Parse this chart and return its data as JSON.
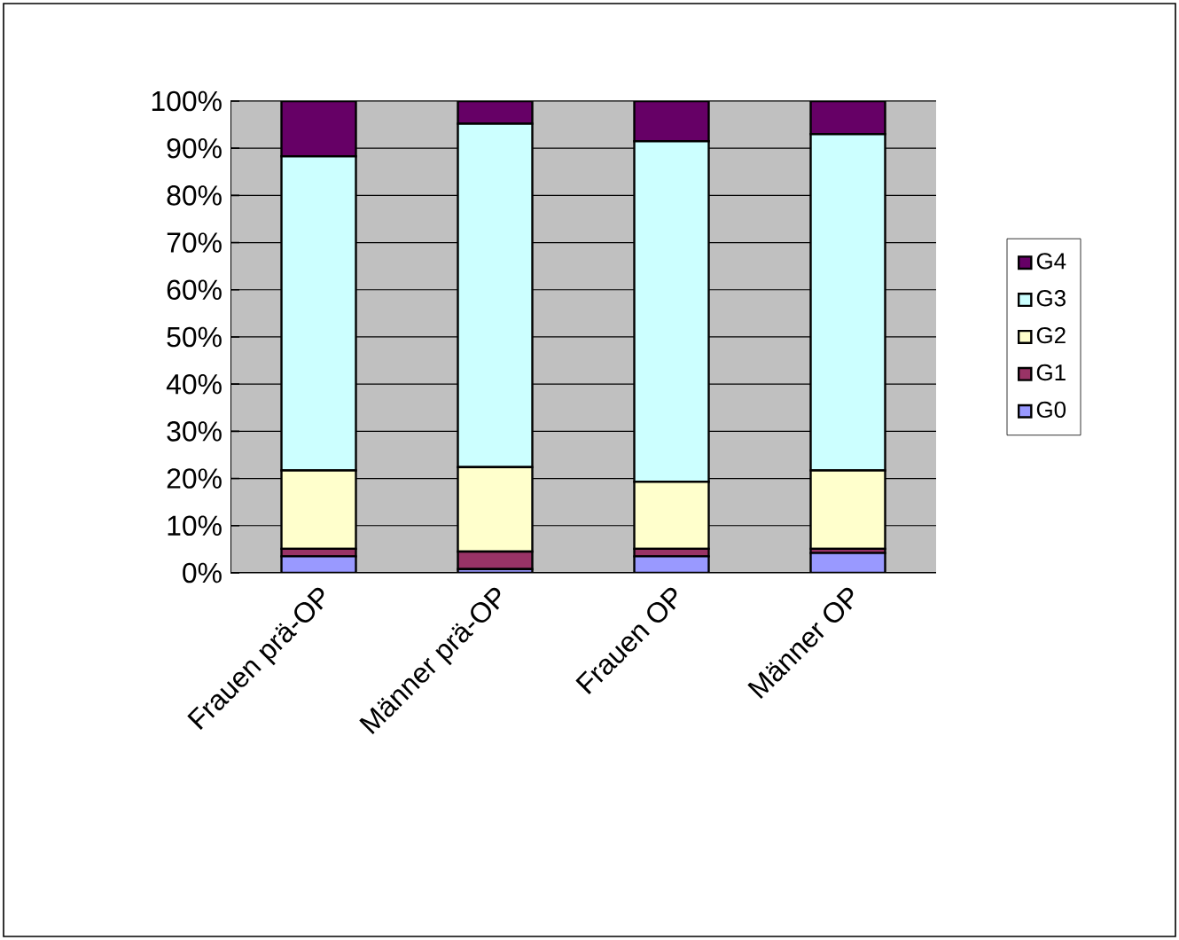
{
  "chart_data": {
    "type": "bar",
    "stacked": true,
    "categories": [
      "Frauen prä-OP",
      "Männer prä-OP",
      "Frauen OP",
      "Männer OP"
    ],
    "series": [
      {
        "name": "G0",
        "color": "#9999ff",
        "values": [
          3.5,
          0.8,
          3.5,
          4.2
        ]
      },
      {
        "name": "G1",
        "color": "#993366",
        "values": [
          1.6,
          3.7,
          1.6,
          0.9
        ]
      },
      {
        "name": "G2",
        "color": "#ffffcc",
        "values": [
          16.6,
          17.9,
          14.2,
          16.6
        ]
      },
      {
        "name": "G3",
        "color": "#ccffff",
        "values": [
          66.6,
          72.8,
          72.2,
          71.3
        ]
      },
      {
        "name": "G4",
        "color": "#660066",
        "values": [
          11.7,
          4.8,
          8.5,
          7.0
        ]
      }
    ],
    "ylim": [
      0,
      100
    ],
    "yticks": [
      {
        "value": 0,
        "label": "0%"
      },
      {
        "value": 10,
        "label": "10%"
      },
      {
        "value": 20,
        "label": "20%"
      },
      {
        "value": 30,
        "label": "30%"
      },
      {
        "value": 40,
        "label": "40%"
      },
      {
        "value": 50,
        "label": "50%"
      },
      {
        "value": 60,
        "label": "60%"
      },
      {
        "value": 70,
        "label": "70%"
      },
      {
        "value": 80,
        "label": "80%"
      },
      {
        "value": 90,
        "label": "90%"
      },
      {
        "value": 100,
        "label": "100%"
      }
    ],
    "grid": "y",
    "legend": "right"
  }
}
